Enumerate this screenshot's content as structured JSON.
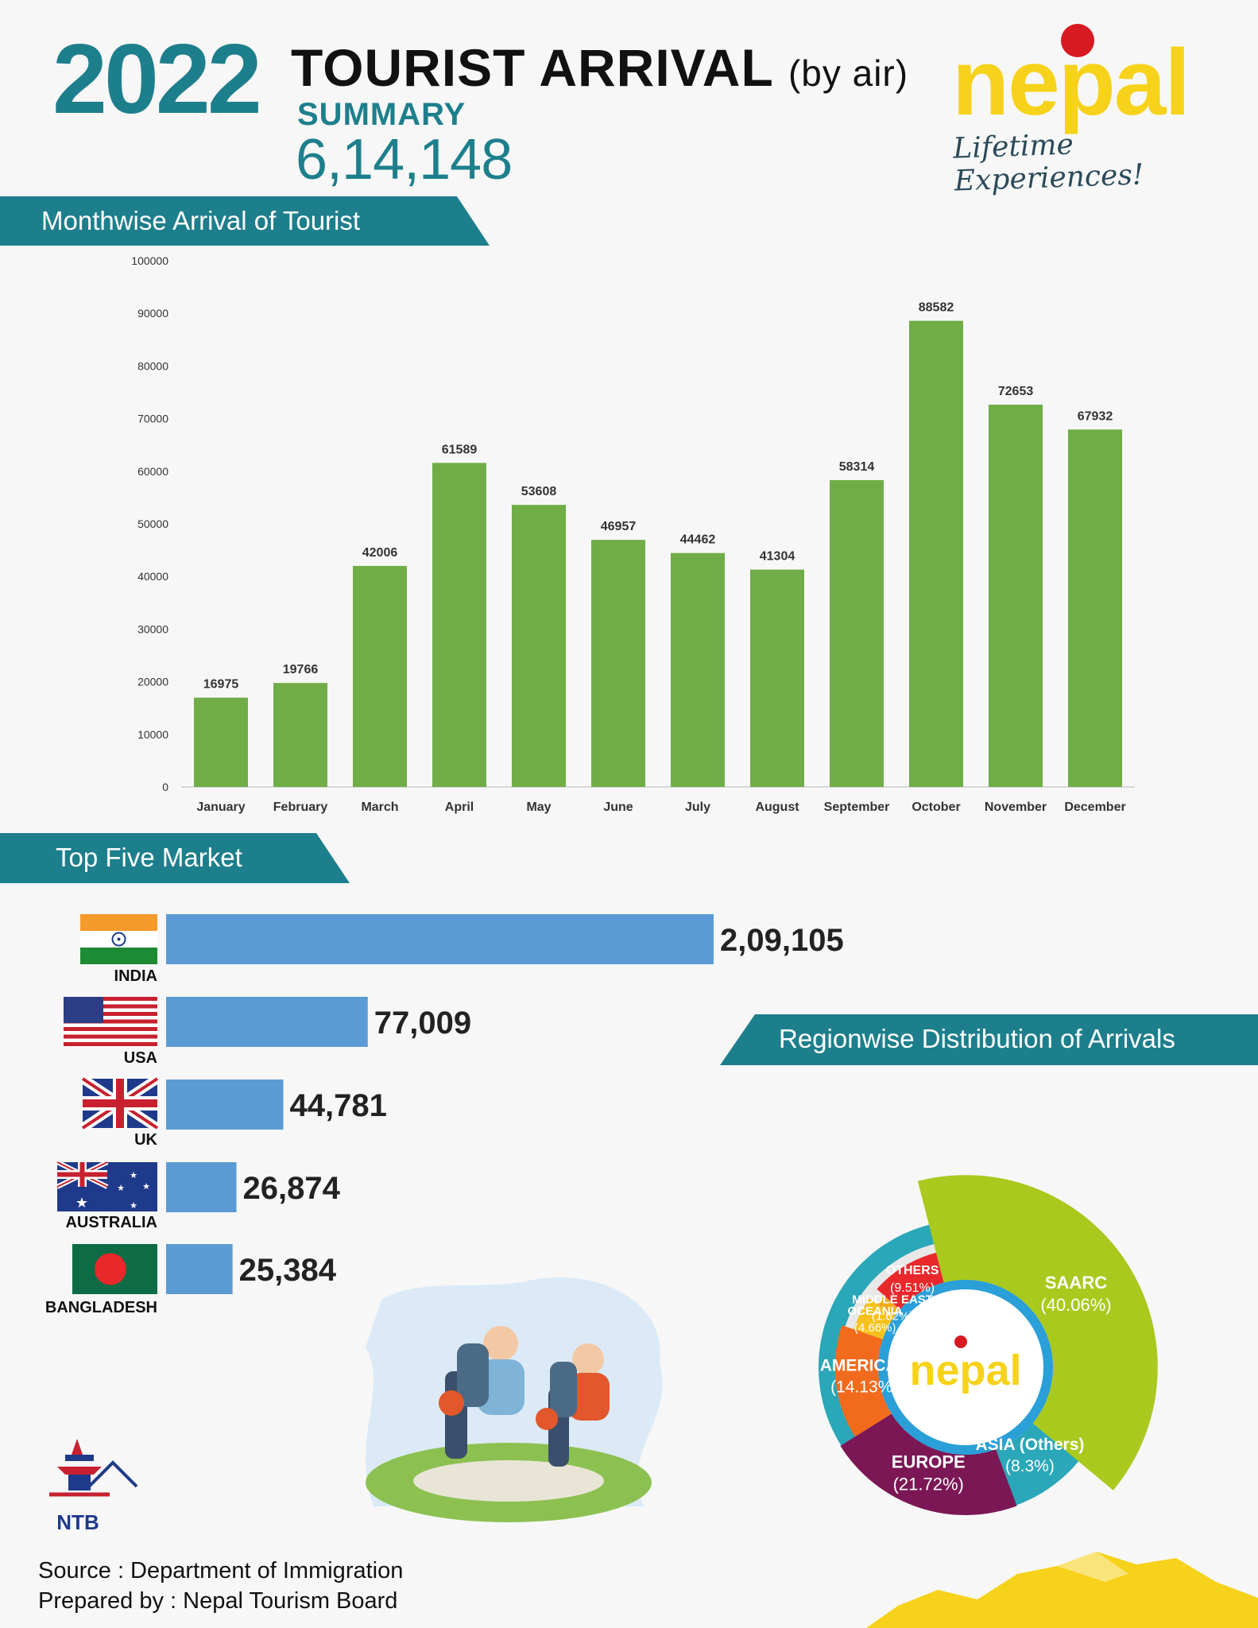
{
  "header": {
    "year": "2022",
    "title": "TOURIST ARRIVAL",
    "title_suffix": "(by air)",
    "summary_label": "SUMMARY",
    "total": "6,14,148"
  },
  "logo": {
    "word": "nepal",
    "tagline": "Lifetime Experiences!"
  },
  "sections": {
    "monthwise": "Monthwise Arrival of Tourist",
    "top_five": "Top Five Market",
    "regionwise": "Regionwise Distribution of Arrivals"
  },
  "colors": {
    "teal": "#1e7f8c",
    "bar_green": "#70ad47",
    "bar_blue": "#5b9bd5",
    "logo_yellow": "#f6d21a"
  },
  "chart_data": [
    {
      "type": "bar",
      "categories": [
        "January",
        "February",
        "March",
        "April",
        "May",
        "June",
        "July",
        "August",
        "September",
        "October",
        "November",
        "December"
      ],
      "values": [
        16975,
        19766,
        42006,
        61589,
        53608,
        46957,
        44462,
        41304,
        58314,
        88582,
        72653,
        67932
      ],
      "data_labels": [
        "16975",
        "19766",
        "42006",
        "61589",
        "53608",
        "46957",
        "44462",
        "41304",
        "58314",
        "88582",
        "72653",
        "67932"
      ],
      "yticks": [
        "0",
        "10000",
        "20000",
        "30000",
        "40000",
        "50000",
        "60000",
        "70000",
        "80000",
        "90000",
        "100000"
      ],
      "ylim": [
        0,
        100000
      ],
      "grid": false,
      "legend": "none"
    },
    {
      "type": "bar",
      "orientation": "horizontal",
      "categories": [
        "INDIA",
        "USA",
        "UK",
        "AUSTRALIA",
        "BANGLADESH"
      ],
      "values": [
        209105,
        77009,
        44781,
        26874,
        25384
      ],
      "data_labels": [
        "2,09,105",
        "77,009",
        "44,781",
        "26,874",
        "25,384"
      ]
    },
    {
      "type": "pie",
      "categories": [
        "SAARC",
        "ASIA (Others)",
        "EUROPE",
        "AMERICAS",
        "OCEANIA",
        "MIDDLE EAST",
        "OTHERS"
      ],
      "values": [
        40.06,
        8.3,
        21.72,
        14.13,
        4.66,
        1.62,
        9.51
      ],
      "labels": [
        [
          "SAARC",
          "(40.06%)"
        ],
        [
          "ASIA (Others)",
          "(8.3%)"
        ],
        [
          "EUROPE",
          "(21.72%)"
        ],
        [
          "AMERICAS",
          "(14.13%)"
        ],
        [
          "OCEANIA",
          "(4.66%)"
        ],
        [
          "MIDDLE EAST",
          "(1.62%)"
        ],
        [
          "OTHERS",
          "(9.51%)"
        ]
      ],
      "colors": [
        "#a9c91e",
        "#2aa7b8",
        "#7b1755",
        "#f26b1d",
        "#f6c21a",
        "#f3a91a",
        "#e8282b"
      ],
      "center_label": "nepal"
    }
  ],
  "ntb_logo": "NTB",
  "footer": {
    "source": "Source : Department of Immigration",
    "prepared": "Prepared by : Nepal Tourism Board"
  }
}
